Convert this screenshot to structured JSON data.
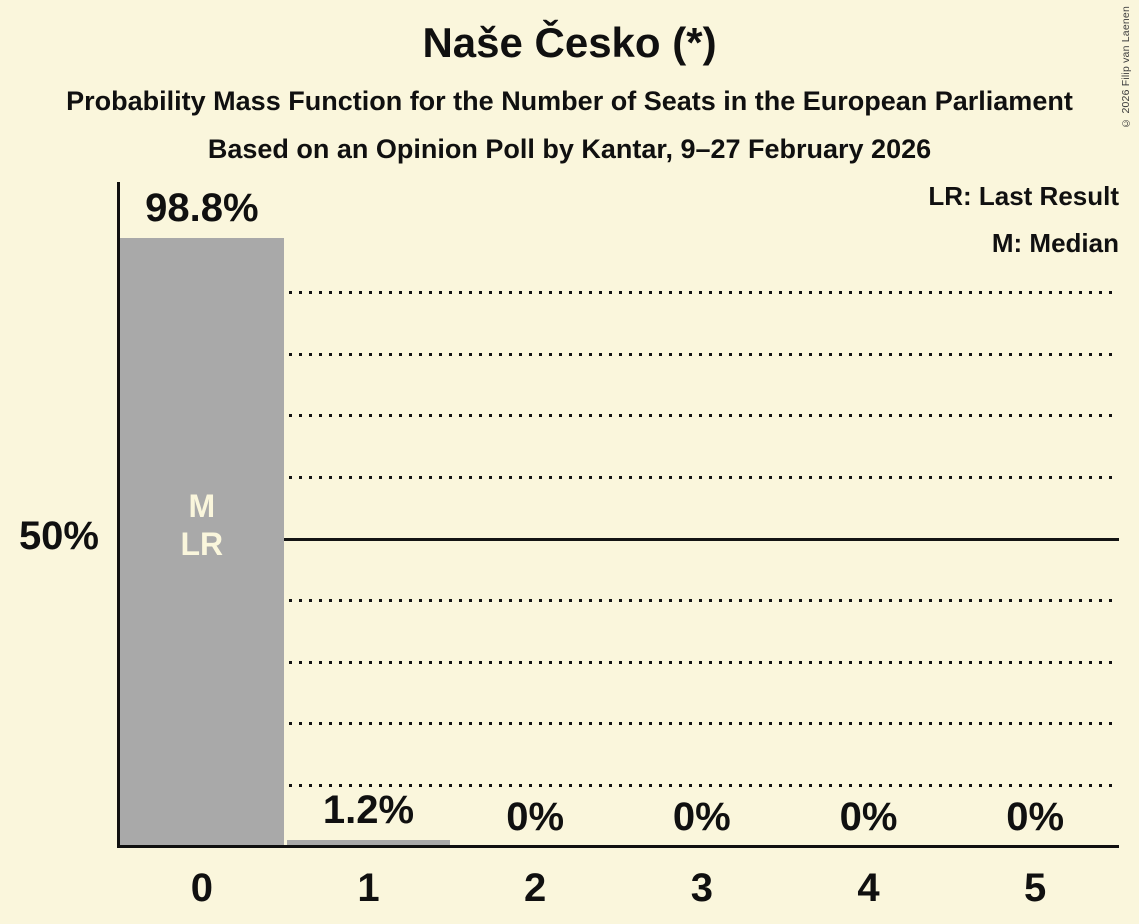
{
  "title": "Naše Česko (*)",
  "subtitle": "Probability Mass Function for the Number of Seats in the European Parliament",
  "poll_line": "Based on an Opinion Poll by Kantar, 9–27 February 2026",
  "legend": {
    "last_result": "LR: Last Result",
    "median": "M: Median"
  },
  "copyright": "© 2026 Filip van Laenen",
  "chart_data": {
    "type": "bar",
    "title": "Naše Česko (*)",
    "xlabel": "",
    "ylabel": "",
    "categories": [
      "0",
      "1",
      "2",
      "3",
      "4",
      "5"
    ],
    "values": [
      98.8,
      1.2,
      0,
      0,
      0,
      0
    ],
    "value_labels": [
      "98.8%",
      "1.2%",
      "0%",
      "0%",
      "0%",
      "0%"
    ],
    "bar_annotations": [
      [
        "M",
        "LR"
      ],
      [],
      [],
      [],
      [],
      []
    ],
    "ylim": [
      0,
      100
    ],
    "ytick": {
      "pct": 50,
      "label": "50%"
    },
    "solid_gridline_pct": 50,
    "dotted_gridlines_pct": [
      90,
      80,
      70,
      60,
      40,
      30,
      20,
      10
    ],
    "grid": "horizontal-only",
    "legend_position": "top-right",
    "colors": {
      "background": "#FAF6DC",
      "bar": "#A9A9A9",
      "text": "#101010",
      "bar_label": "#FAF6DC",
      "gridline": "#141414"
    }
  }
}
